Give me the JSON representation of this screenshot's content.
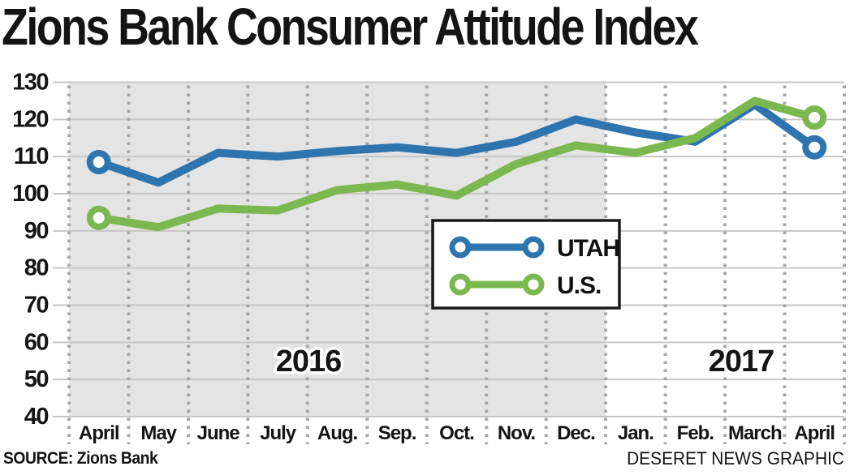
{
  "chart_data": {
    "type": "line",
    "title": "Zions Bank Consumer Attitude Index",
    "categories": [
      "April",
      "May",
      "June",
      "July",
      "Aug.",
      "Sep.",
      "Oct.",
      "Nov.",
      "Dec.",
      "Jan.",
      "Feb.",
      "March",
      "April"
    ],
    "year_bands": [
      {
        "label": "2016",
        "start_index": 0,
        "end_index": 8,
        "shaded": true
      },
      {
        "label": "2017",
        "start_index": 9,
        "end_index": 12,
        "shaded": false
      }
    ],
    "ylim": [
      40,
      130
    ],
    "yticks": [
      130,
      120,
      110,
      100,
      90,
      80,
      70,
      60,
      50,
      40
    ],
    "grid": true,
    "legend_position": "center",
    "series": [
      {
        "name": "UTAH",
        "color": "#2E74AE",
        "values": [
          108.5,
          103,
          111,
          110,
          111.5,
          112.5,
          111,
          114,
          120,
          116.5,
          114,
          124,
          112.5
        ]
      },
      {
        "name": "U.S.",
        "color": "#7CB850",
        "values": [
          93.5,
          91,
          96,
          95.5,
          101,
          102.5,
          99.5,
          108,
          113,
          111,
          115,
          125,
          120.5
        ]
      }
    ],
    "colors": {
      "shaded_band": "#E4E4E4",
      "gridline": "#C7C7C7",
      "dotted_line": "#A6A6A6",
      "text": "#141414"
    }
  },
  "footer": {
    "source": "SOURCE: Zions Bank",
    "credit": "DESERET NEWS GRAPHIC"
  }
}
